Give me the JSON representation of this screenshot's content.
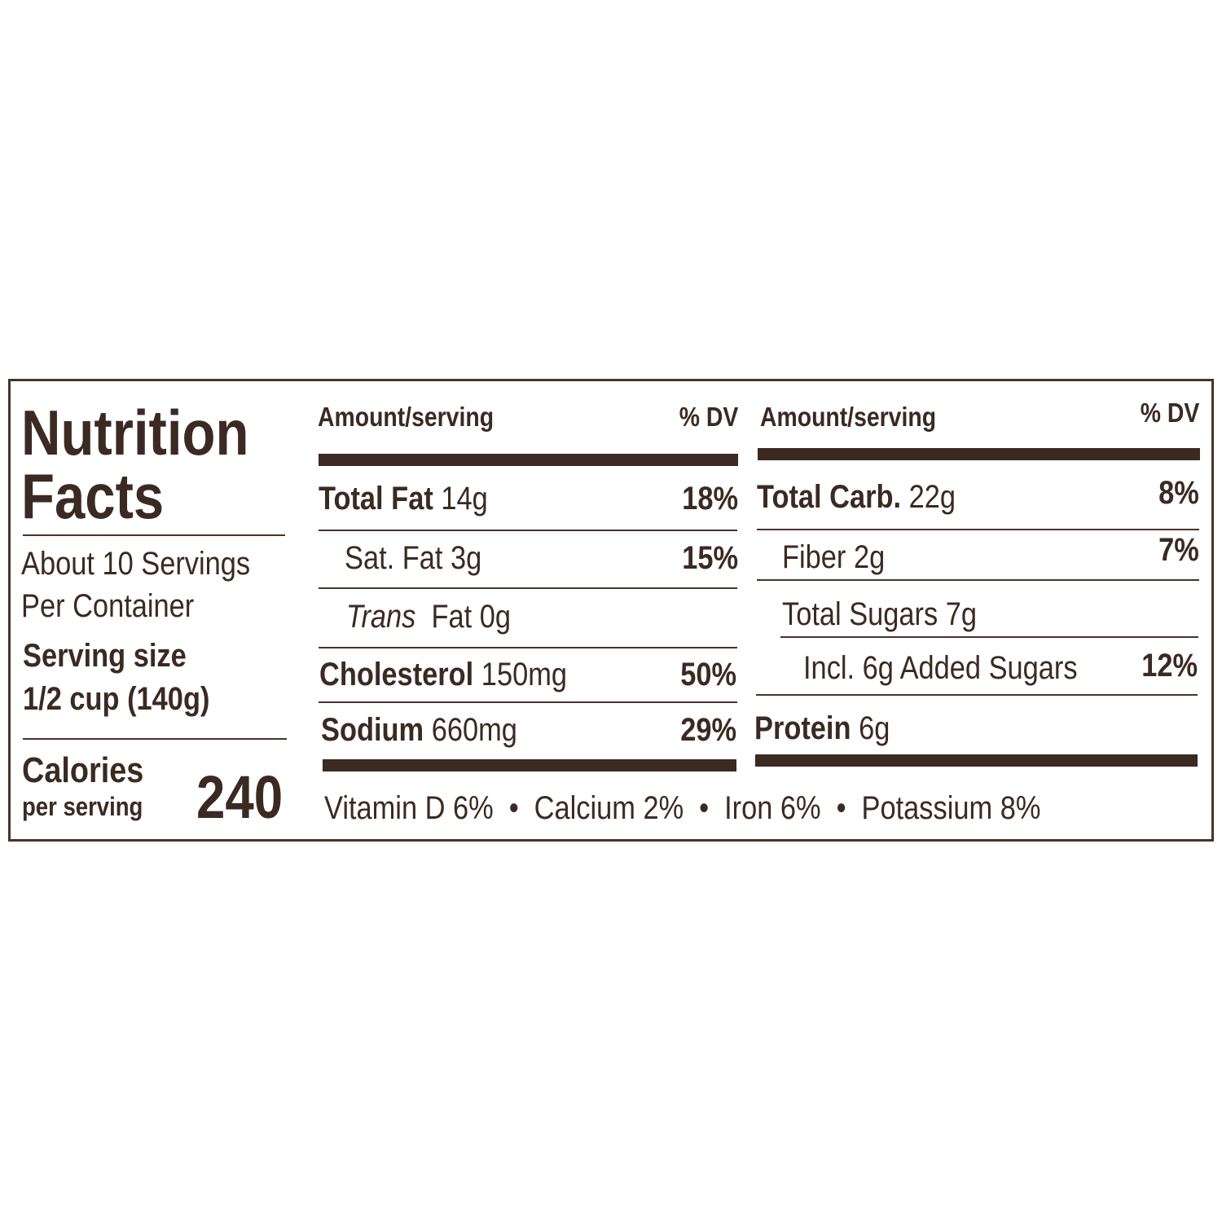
{
  "title_line1": "Nutrition",
  "title_line2": "Facts",
  "servings_line1": "About 10 Servings",
  "servings_line2": "Per Container",
  "serving_size_label": "Serving size",
  "serving_size_value": "1/2 cup (140g)",
  "calories_label": "Calories",
  "calories_sub": "per serving",
  "calories_value": "240",
  "colors": {
    "ink": "#3b2a22",
    "background": "#ffffff"
  },
  "left_column": {
    "header_amount": "Amount/serving",
    "header_dv": "% DV",
    "rows": [
      {
        "name": "Total Fat",
        "amount": "14g",
        "dv": "18%"
      },
      {
        "name": "Sat. Fat",
        "amount": "3g",
        "dv": "15%"
      },
      {
        "name": "Trans",
        "name_rest": "Fat",
        "amount": "0g",
        "dv": ""
      },
      {
        "name": "Cholesterol",
        "amount": "150mg",
        "dv": "50%"
      },
      {
        "name": "Sodium",
        "amount": "660mg",
        "dv": "29%"
      }
    ]
  },
  "right_column": {
    "header_amount": "Amount/serving",
    "header_dv": "% DV",
    "rows": [
      {
        "name": "Total Carb.",
        "amount": "22g",
        "dv": "8%"
      },
      {
        "name": "Fiber",
        "amount": "2g",
        "dv": "7%"
      },
      {
        "name": "Total Sugars",
        "amount": "7g",
        "dv": ""
      },
      {
        "name": "Incl. 6g Added Sugars",
        "amount": "",
        "dv": "12%"
      },
      {
        "name": "Protein",
        "amount": "6g",
        "dv": ""
      }
    ]
  },
  "vitamins": [
    {
      "text": "Vitamin D 6%"
    },
    {
      "text": "Calcium 2%"
    },
    {
      "text": "Iron 6%"
    },
    {
      "text": "Potassium 8%"
    }
  ],
  "separator": "•"
}
